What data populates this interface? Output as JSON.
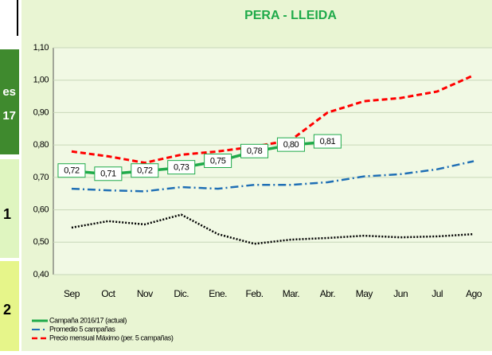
{
  "side_labels": [
    "es",
    "17",
    "1",
    "2"
  ],
  "chart_data": {
    "type": "line",
    "title": "PERA - LLEIDA",
    "categories": [
      "Sep",
      "Oct",
      "Nov",
      "Dic.",
      "Ene.",
      "Feb.",
      "Mar.",
      "Abr.",
      "May",
      "Jun",
      "Jul",
      "Ago"
    ],
    "series": [
      {
        "name": "Campaña 2016/17 (actual)",
        "color": "#1faa4a",
        "dash": "solid",
        "values": [
          0.72,
          0.71,
          0.72,
          0.73,
          0.75,
          0.78,
          0.8,
          0.81,
          null,
          null,
          null,
          null
        ],
        "value_labels": [
          "0,72",
          "0,71",
          "0,72",
          "0,73",
          "0,75",
          "0,78",
          "0,80",
          "0,81",
          null,
          null,
          null,
          null
        ]
      },
      {
        "name": "Promedio 5 campañas",
        "color": "#1f6fb5",
        "dash": "dashdot",
        "values": [
          0.665,
          0.66,
          0.657,
          0.67,
          0.665,
          0.677,
          0.677,
          0.685,
          0.703,
          0.71,
          0.725,
          0.75
        ]
      },
      {
        "name": "Precio mensual Máximo  (per. 5 campañas)",
        "color": "#ff0000",
        "dash": "dashed",
        "values": [
          0.78,
          0.765,
          0.745,
          0.77,
          0.78,
          0.795,
          0.815,
          0.9,
          0.935,
          0.945,
          0.965,
          1.015
        ]
      },
      {
        "color": "#000000",
        "dash": "dotted",
        "values": [
          0.545,
          0.565,
          0.555,
          0.585,
          0.525,
          0.495,
          0.508,
          0.513,
          0.52,
          0.515,
          0.518,
          0.525
        ]
      }
    ],
    "ylim": [
      0.4,
      1.1
    ],
    "yticks": [
      {
        "value": 0.4,
        "label": "0,40"
      },
      {
        "value": 0.5,
        "label": "0,50"
      },
      {
        "value": 0.6,
        "label": "0,60"
      },
      {
        "value": 0.7,
        "label": "0,70"
      },
      {
        "value": 0.8,
        "label": "0,80"
      },
      {
        "value": 0.9,
        "label": "0,90"
      },
      {
        "value": 1.0,
        "label": "1,00"
      },
      {
        "value": 1.1,
        "label": "1,10"
      }
    ],
    "grid": true
  }
}
